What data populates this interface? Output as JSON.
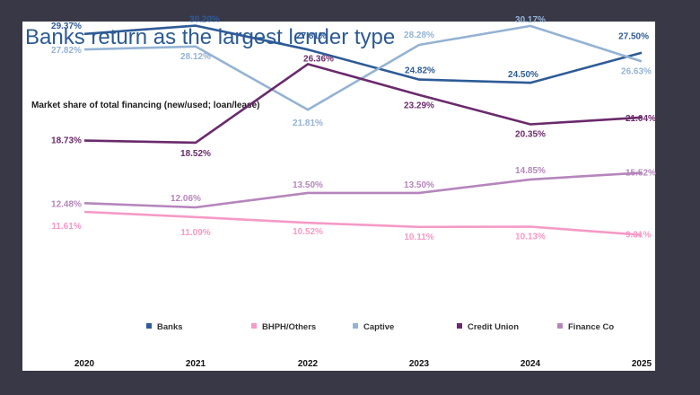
{
  "slide": {
    "title": "Banks return as the largest lender type",
    "subtitle": "Market share of total financing (new/used; loan/lease)"
  },
  "chart_data": {
    "type": "line",
    "title": "Banks return as the largest lender type",
    "subtitle": "Market share of total financing (new/used; loan/lease)",
    "categories": [
      "2020",
      "2021",
      "2022",
      "2023",
      "2024",
      "2025"
    ],
    "ylim": [
      5,
      35
    ],
    "grid": false,
    "legend_position": "bottom",
    "series": [
      {
        "name": "Banks",
        "color": "#2e5b97",
        "values": [
          29.37,
          30.2,
          27.81,
          24.82,
          24.5,
          27.5
        ],
        "labels": [
          "29.37%",
          "30.20%",
          "27.81%",
          "24.82%",
          "24.50%",
          "27.50%"
        ]
      },
      {
        "name": "BHPH/Others",
        "color": "#f59ac7",
        "values": [
          11.61,
          11.09,
          10.52,
          10.11,
          10.13,
          9.31
        ],
        "labels": [
          "11.61%",
          "11.09%",
          "10.52%",
          "10.11%",
          "10.13%",
          "9.31%"
        ]
      },
      {
        "name": "Captive",
        "color": "#94b3d4",
        "values": [
          27.82,
          28.12,
          21.81,
          28.28,
          30.17,
          26.63
        ],
        "labels": [
          "27.82%",
          "28.12%",
          "21.81%",
          "28.28%",
          "30.17%",
          "26.63%"
        ]
      },
      {
        "name": "Credit Union",
        "color": "#6a2a6c",
        "values": [
          18.73,
          18.52,
          26.36,
          23.29,
          20.35,
          21.04
        ],
        "labels": [
          "18.73%",
          "18.52%",
          "26.36%",
          "23.29%",
          "20.35%",
          "21.04%"
        ]
      },
      {
        "name": "Finance Co",
        "color": "#b586bc",
        "values": [
          12.48,
          12.06,
          13.5,
          13.5,
          14.85,
          15.52
        ],
        "labels": [
          "12.48%",
          "12.06%",
          "13.50%",
          "13.50%",
          "14.85%",
          "15.52%"
        ]
      }
    ]
  }
}
